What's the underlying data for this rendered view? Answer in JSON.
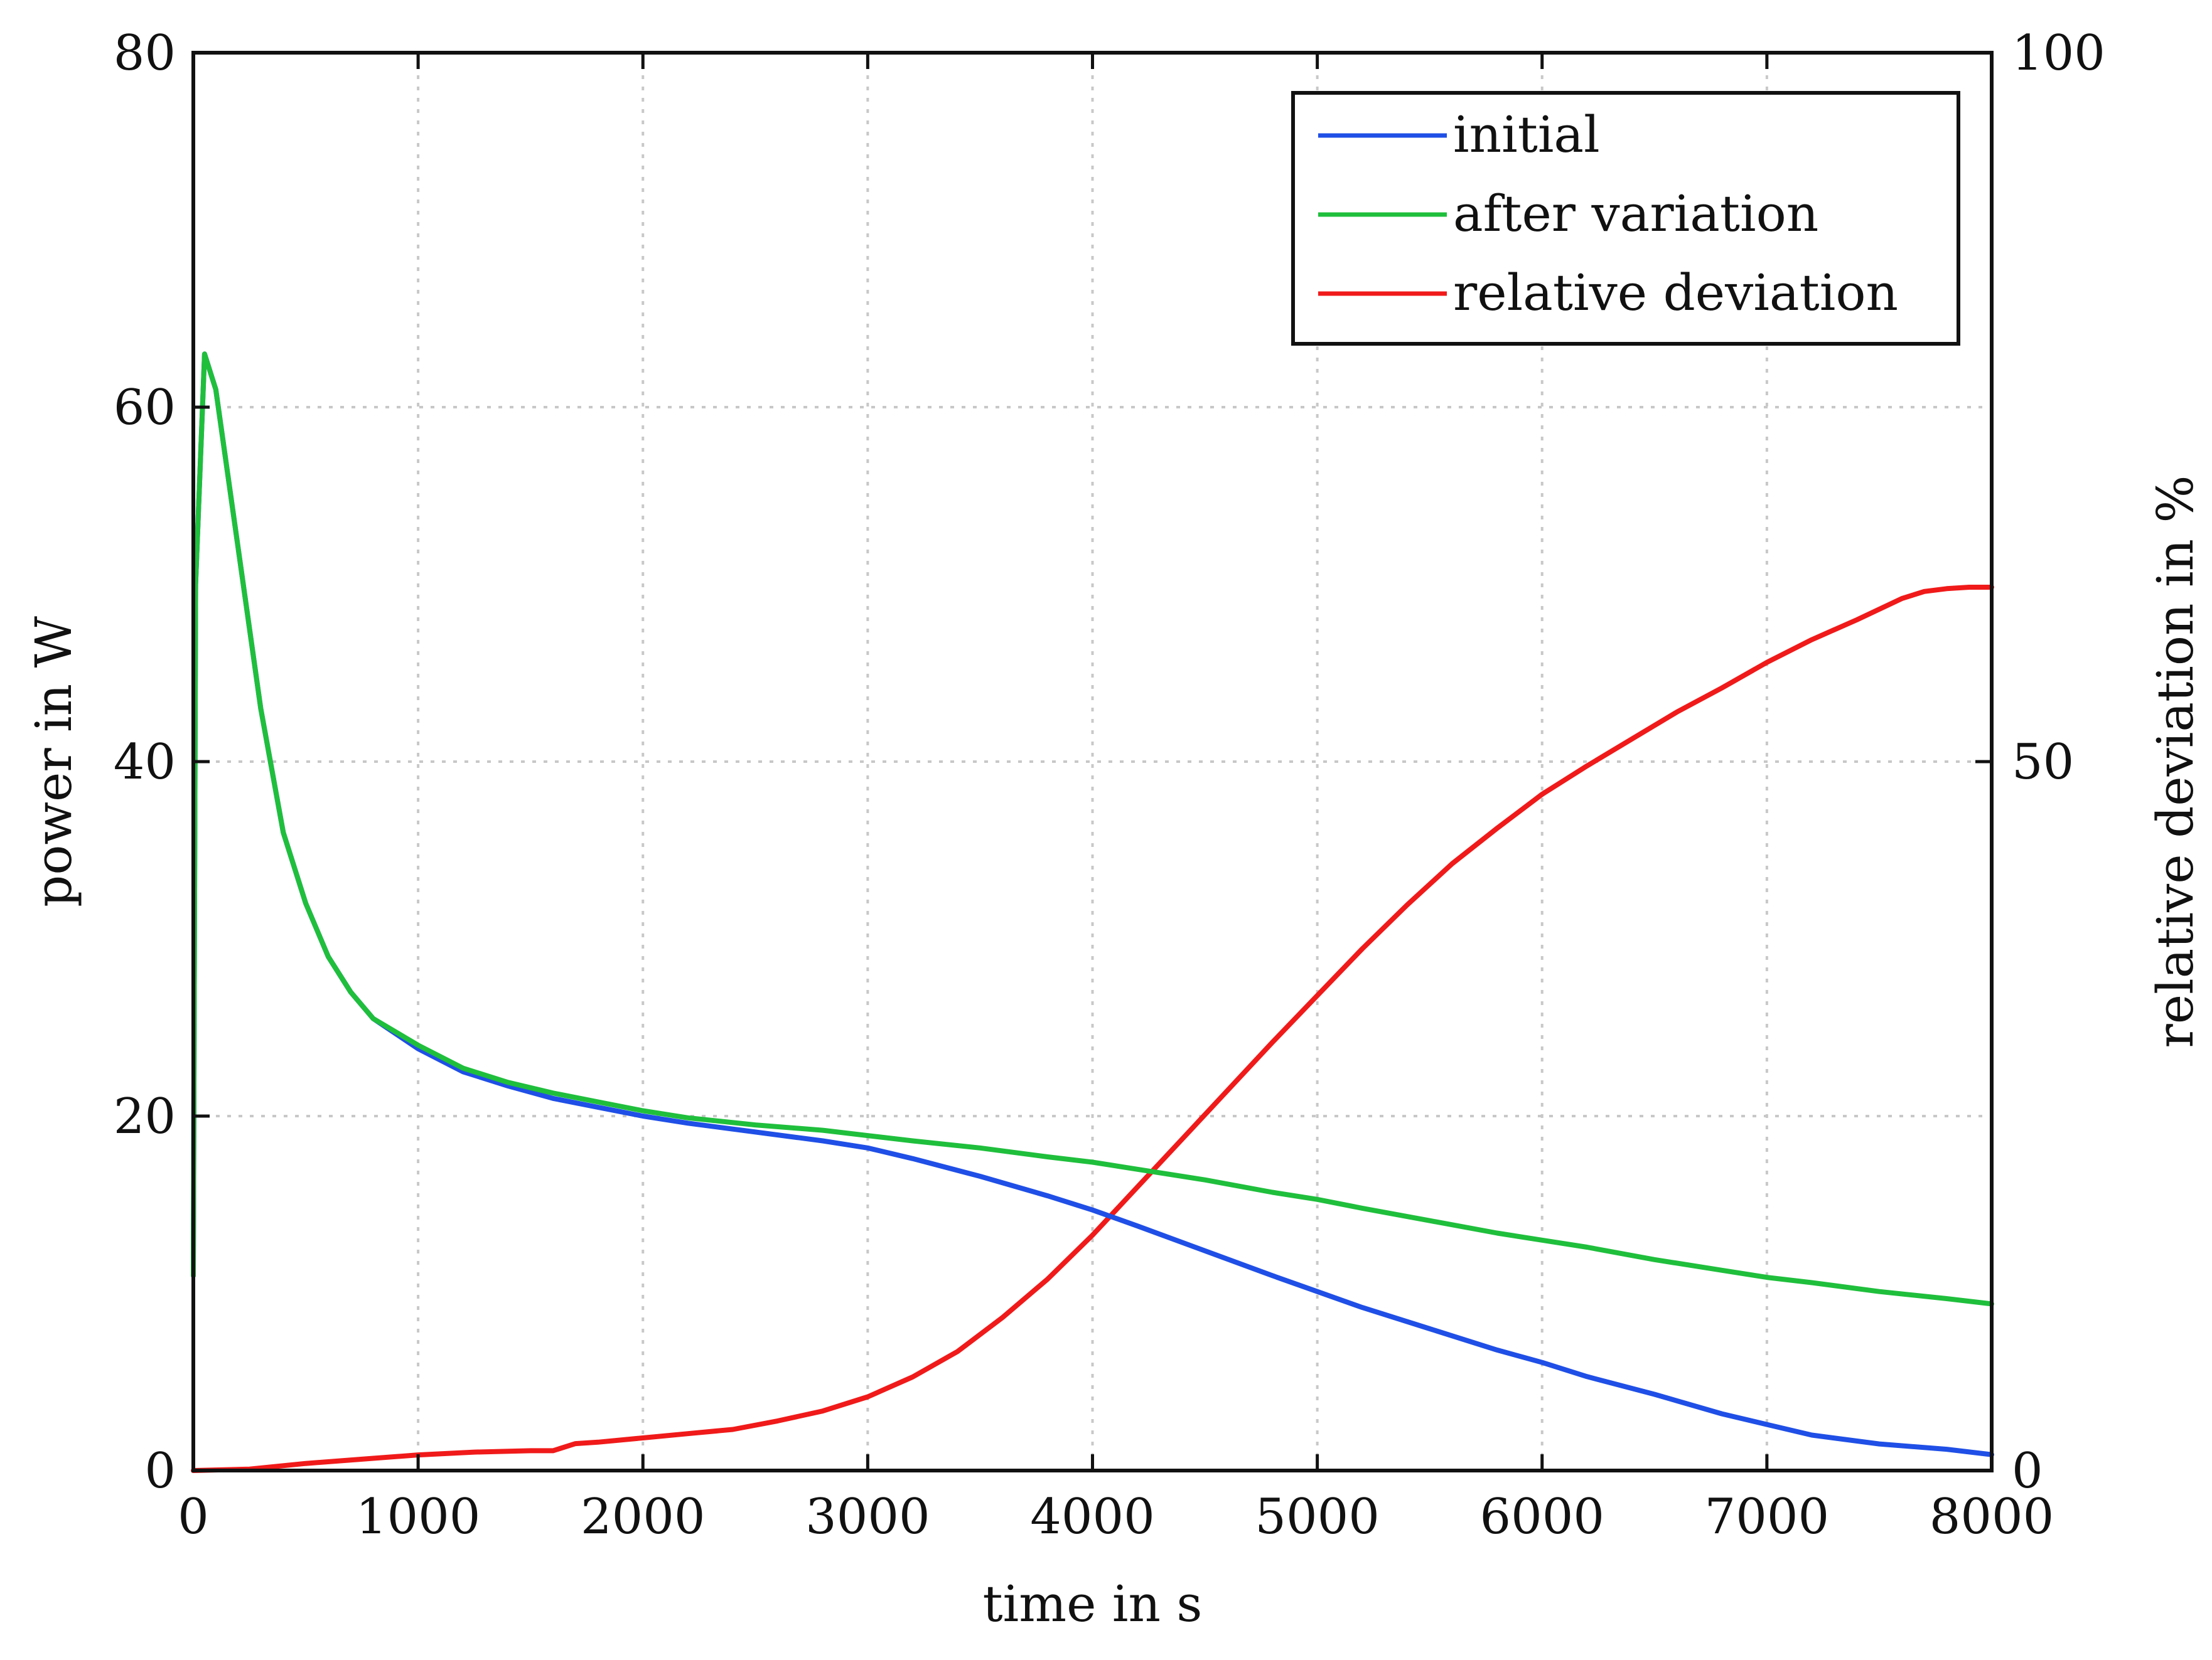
{
  "chart_data": {
    "type": "line",
    "title": "",
    "xlabel": "time in s",
    "ylabel": "power in W",
    "y2label": "relative deviation in %",
    "xlim": [
      0,
      8000
    ],
    "ylim": [
      0,
      80
    ],
    "y2lim": [
      0,
      100
    ],
    "xticks": [
      "0",
      "1000",
      "2000",
      "3000",
      "4000",
      "5000",
      "6000",
      "7000",
      "8000"
    ],
    "yticks": [
      "0",
      "20",
      "40",
      "60",
      "80"
    ],
    "y2ticks": [
      "0",
      "50",
      "100"
    ],
    "grid": true,
    "legend_position": "top-right",
    "series": [
      {
        "name": "initial",
        "axis": "left",
        "color": "#1f4fe6",
        "x": [
          0,
          10,
          50,
          100,
          200,
          300,
          400,
          500,
          600,
          700,
          800,
          1000,
          1200,
          1400,
          1600,
          1800,
          2000,
          2200,
          2500,
          2800,
          3000,
          3200,
          3500,
          3800,
          4000,
          4200,
          4500,
          4800,
          5000,
          5200,
          5500,
          5800,
          6000,
          6200,
          6500,
          6800,
          7000,
          7200,
          7500,
          7800,
          8000
        ],
        "y": [
          11,
          50,
          63,
          61,
          52,
          43,
          36,
          32,
          29,
          27,
          25.5,
          23.8,
          22.5,
          21.7,
          21,
          20.5,
          20,
          19.6,
          19.1,
          18.6,
          18.2,
          17.6,
          16.6,
          15.5,
          14.7,
          13.8,
          12.4,
          11,
          10.1,
          9.2,
          8,
          6.8,
          6.1,
          5.3,
          4.3,
          3.2,
          2.6,
          2,
          1.5,
          1.2,
          0.9
        ]
      },
      {
        "name": "after variation",
        "axis": "left",
        "color": "#1fbf3c",
        "x": [
          0,
          10,
          50,
          100,
          200,
          300,
          400,
          500,
          600,
          700,
          800,
          1000,
          1200,
          1400,
          1600,
          1800,
          2000,
          2200,
          2500,
          2800,
          3000,
          3200,
          3500,
          3800,
          4000,
          4200,
          4500,
          4800,
          5000,
          5200,
          5500,
          5800,
          6000,
          6200,
          6500,
          6800,
          7000,
          7200,
          7500,
          7800,
          8000
        ],
        "y": [
          11,
          50,
          63,
          61,
          52,
          43,
          36,
          32,
          29,
          27,
          25.5,
          24,
          22.7,
          21.9,
          21.3,
          20.8,
          20.3,
          19.9,
          19.5,
          19.2,
          18.9,
          18.6,
          18.2,
          17.7,
          17.4,
          17,
          16.4,
          15.7,
          15.3,
          14.8,
          14.1,
          13.4,
          13,
          12.6,
          11.9,
          11.3,
          10.9,
          10.6,
          10.1,
          9.7,
          9.4
        ]
      },
      {
        "name": "relative deviation",
        "axis": "right",
        "color": "#f01a1a",
        "x": [
          0,
          250,
          500,
          750,
          1000,
          1250,
          1500,
          1600,
          1700,
          1800,
          2000,
          2200,
          2400,
          2600,
          2800,
          3000,
          3200,
          3400,
          3600,
          3800,
          4000,
          4200,
          4400,
          4600,
          4800,
          5000,
          5200,
          5400,
          5600,
          5800,
          6000,
          6200,
          6400,
          6600,
          6800,
          7000,
          7200,
          7400,
          7600,
          7700,
          7800,
          7900,
          8000
        ],
        "y": [
          0,
          0.1,
          0.5,
          0.8,
          1.1,
          1.3,
          1.4,
          1.4,
          1.9,
          2.0,
          2.3,
          2.6,
          2.9,
          3.5,
          4.2,
          5.2,
          6.6,
          8.4,
          10.8,
          13.5,
          16.6,
          20.0,
          23.4,
          26.8,
          30.2,
          33.5,
          36.8,
          39.9,
          42.8,
          45.3,
          47.7,
          49.7,
          51.6,
          53.5,
          55.2,
          57.0,
          58.6,
          60.0,
          61.5,
          62.0,
          62.2,
          62.3,
          62.3
        ]
      }
    ]
  }
}
